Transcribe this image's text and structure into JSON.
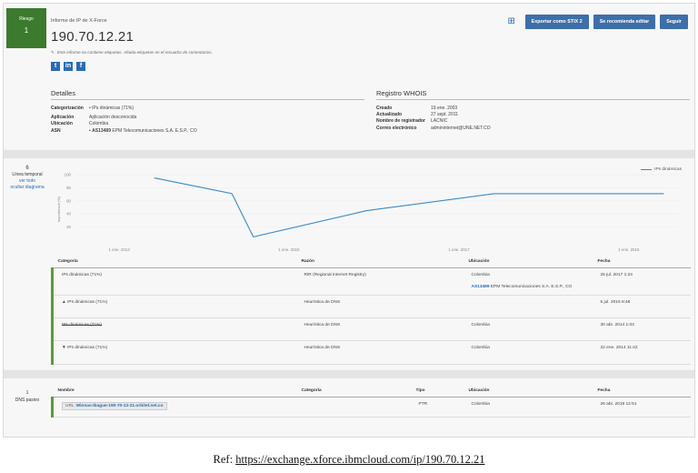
{
  "risk": {
    "label": "Riesgo",
    "value": "1"
  },
  "report": {
    "type": "Informe de IP de X-Force",
    "ip": "190.70.12.21",
    "tags_note": "Este informe no contiene etiquetas. Añada etiquetas en el recuadro de comentarios."
  },
  "social": [
    "t",
    "in",
    "f"
  ],
  "actions": {
    "export": "Exportar como STIX 2",
    "recommend": "Se recomienda editar",
    "follow": "Seguir"
  },
  "details": {
    "title": "Detalles",
    "categorization_key": "Categorización",
    "categorization_val": "IPs dinámicas (71%)",
    "application_key": "Aplicación",
    "application_val": "Aplicación desconocida",
    "location_key": "Ubicación",
    "location_val": "Colombia",
    "asn_key": "ASN",
    "asn_link": "AS13489",
    "asn_val": "EPM Telecomunicaciones S.A. E.S.P., CO"
  },
  "whois": {
    "title": "Registro WHOIS",
    "created_key": "Creado",
    "created_val": "19 ene. 2003",
    "updated_key": "Actualizado",
    "updated_val": "27 sept. 2011",
    "registrar_key": "Nombre de registrador",
    "registrar_val": "LACNIC",
    "email_key": "Correo electrónico",
    "email_val": "admininternet@UNE.NET.CO"
  },
  "timeline": {
    "count": "6",
    "label": "Línea temporal",
    "see_all": "ver todo",
    "hide": "ocultar diagrama"
  },
  "chart_data": {
    "type": "line",
    "series": [
      {
        "name": "IPs dinámicas",
        "values": [
          95,
          71,
          5,
          45,
          71,
          71,
          71
        ]
      }
    ],
    "x": [
      "2013-06",
      "2014-05",
      "2014-08",
      "2015-12",
      "2017-06",
      "2018-07",
      "2019-06"
    ],
    "xticks": [
      "1 ene. 2013",
      "1 ene. 2015",
      "1 ene. 2017",
      "1 ene. 2019"
    ],
    "yticks": [
      "100",
      "80",
      "60",
      "40",
      "20"
    ],
    "ylabel": "Importancia (%)",
    "ylim": [
      0,
      100
    ],
    "legend": "top-right",
    "color": "#3a8bc7"
  },
  "history": {
    "headers": [
      "Categoría",
      "Razón",
      "Ubicación",
      "Fecha"
    ],
    "rows": [
      {
        "cat": "IPs dinámicas (71%)",
        "reason": "RIR (Regional Internet Registry)",
        "loc": "Colombia",
        "asn_link": "AS13489",
        "asn": "EPM Telecomunicaciones S.A. E.S.P., CO",
        "date": "25 jul. 2017 1:24"
      },
      {
        "cat": "▲ IPs dinámicas (71%)",
        "reason": "Heurística de DNS",
        "loc": "",
        "date": "5 jul. 2016 8:48"
      },
      {
        "cat": "IPs dinámicas (71%)",
        "reason": "Heurística de DNS",
        "loc": "Colombia",
        "date": "30 abr. 2014 1:03"
      },
      {
        "cat": "▼ IPs dinámicas (71%)",
        "reason": "Heurística de DNS",
        "loc": "Colombia",
        "date": "22 ene. 2014 11:42"
      }
    ]
  },
  "passive_dns": {
    "count": "1",
    "label": "DNS pasivo",
    "headers": [
      "Nombre",
      "Categoría",
      "Tipo",
      "Ubicación",
      "Fecha"
    ],
    "row": {
      "url_prefix": "URL",
      "name": "Winnas-Ibague-190-70-12-21.orbitel.net.co",
      "category": "",
      "type": "PTR",
      "loc": "Colombia",
      "date": "26 abr. 2019 12:51"
    }
  },
  "reference": {
    "prefix": "Ref:",
    "url": "https://exchange.xforce.ibmcloud.com/ip/190.70.12.21"
  }
}
